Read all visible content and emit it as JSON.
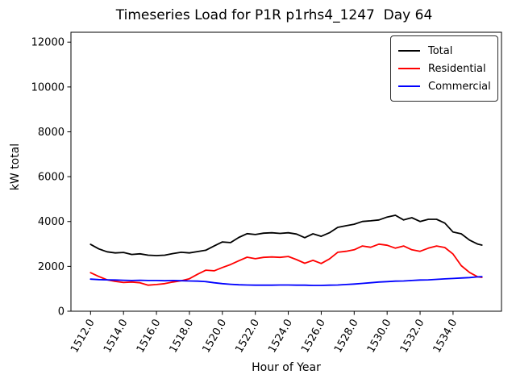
{
  "chart_data": {
    "type": "line",
    "title": "Timeseries Load for P1R p1rhs4_1247  Day 64",
    "xlabel": "Hour of Year",
    "ylabel": "kW total",
    "grid": false,
    "background": "#ffffff",
    "xlim": [
      1510.81,
      1536.94
    ],
    "ylim": [
      0,
      12440
    ],
    "xticks": {
      "values": [
        1512,
        1514,
        1516,
        1518,
        1520,
        1522,
        1524,
        1526,
        1528,
        1530,
        1532,
        1534
      ],
      "labels": [
        "1512.0",
        "1514.0",
        "1516.0",
        "1518.0",
        "1520.0",
        "1522.0",
        "1524.0",
        "1526.0",
        "1528.0",
        "1530.0",
        "1532.0",
        "1534.0"
      ],
      "rotation_deg": 60
    },
    "yticks": {
      "values": [
        0,
        2000,
        4000,
        6000,
        8000,
        10000,
        12000
      ],
      "labels": [
        "0",
        "2000",
        "4000",
        "6000",
        "8000",
        "10000",
        "12000"
      ]
    },
    "x": [
      1512,
      1512.5,
      1513,
      1513.5,
      1514,
      1514.5,
      1515,
      1515.5,
      1516,
      1516.5,
      1517,
      1517.5,
      1518,
      1518.5,
      1519,
      1519.5,
      1520,
      1520.5,
      1521,
      1521.5,
      1522,
      1522.5,
      1523,
      1523.5,
      1524,
      1524.5,
      1525,
      1525.5,
      1526,
      1526.5,
      1527,
      1527.5,
      1528,
      1528.5,
      1529,
      1529.5,
      1530,
      1530.5,
      1531,
      1531.5,
      1532,
      1532.5,
      1533,
      1533.5,
      1534,
      1534.5,
      1535,
      1535.5,
      1535.75
    ],
    "series": [
      {
        "name": "Total",
        "color": "#000000",
        "values": [
          2980,
          2780,
          2650,
          2600,
          2620,
          2530,
          2560,
          2500,
          2480,
          2500,
          2570,
          2630,
          2600,
          2660,
          2720,
          2910,
          3090,
          3060,
          3290,
          3460,
          3420,
          3480,
          3500,
          3470,
          3500,
          3440,
          3280,
          3450,
          3340,
          3500,
          3740,
          3810,
          3880,
          4000,
          4030,
          4070,
          4200,
          4280,
          4070,
          4170,
          4000,
          4100,
          4100,
          3930,
          3530,
          3450,
          3170,
          2990,
          2950
        ]
      },
      {
        "name": "Residential",
        "color": "#ff0000",
        "values": [
          1720,
          1550,
          1400,
          1330,
          1280,
          1300,
          1270,
          1160,
          1190,
          1230,
          1300,
          1360,
          1450,
          1650,
          1830,
          1800,
          1950,
          2080,
          2250,
          2410,
          2340,
          2400,
          2420,
          2400,
          2440,
          2300,
          2140,
          2270,
          2130,
          2330,
          2630,
          2670,
          2740,
          2910,
          2850,
          2990,
          2940,
          2810,
          2910,
          2740,
          2670,
          2810,
          2910,
          2840,
          2550,
          2030,
          1730,
          1530,
          1510
        ]
      },
      {
        "name": "Commercial",
        "color": "#0000ff",
        "values": [
          1430,
          1410,
          1400,
          1390,
          1380,
          1370,
          1380,
          1370,
          1370,
          1360,
          1370,
          1360,
          1350,
          1340,
          1320,
          1270,
          1230,
          1200,
          1180,
          1170,
          1160,
          1160,
          1160,
          1170,
          1170,
          1160,
          1160,
          1150,
          1150,
          1160,
          1170,
          1190,
          1210,
          1240,
          1270,
          1300,
          1320,
          1340,
          1350,
          1370,
          1390,
          1400,
          1420,
          1440,
          1460,
          1480,
          1500,
          1530,
          1540
        ]
      }
    ],
    "legend": {
      "position": "upper right"
    }
  }
}
